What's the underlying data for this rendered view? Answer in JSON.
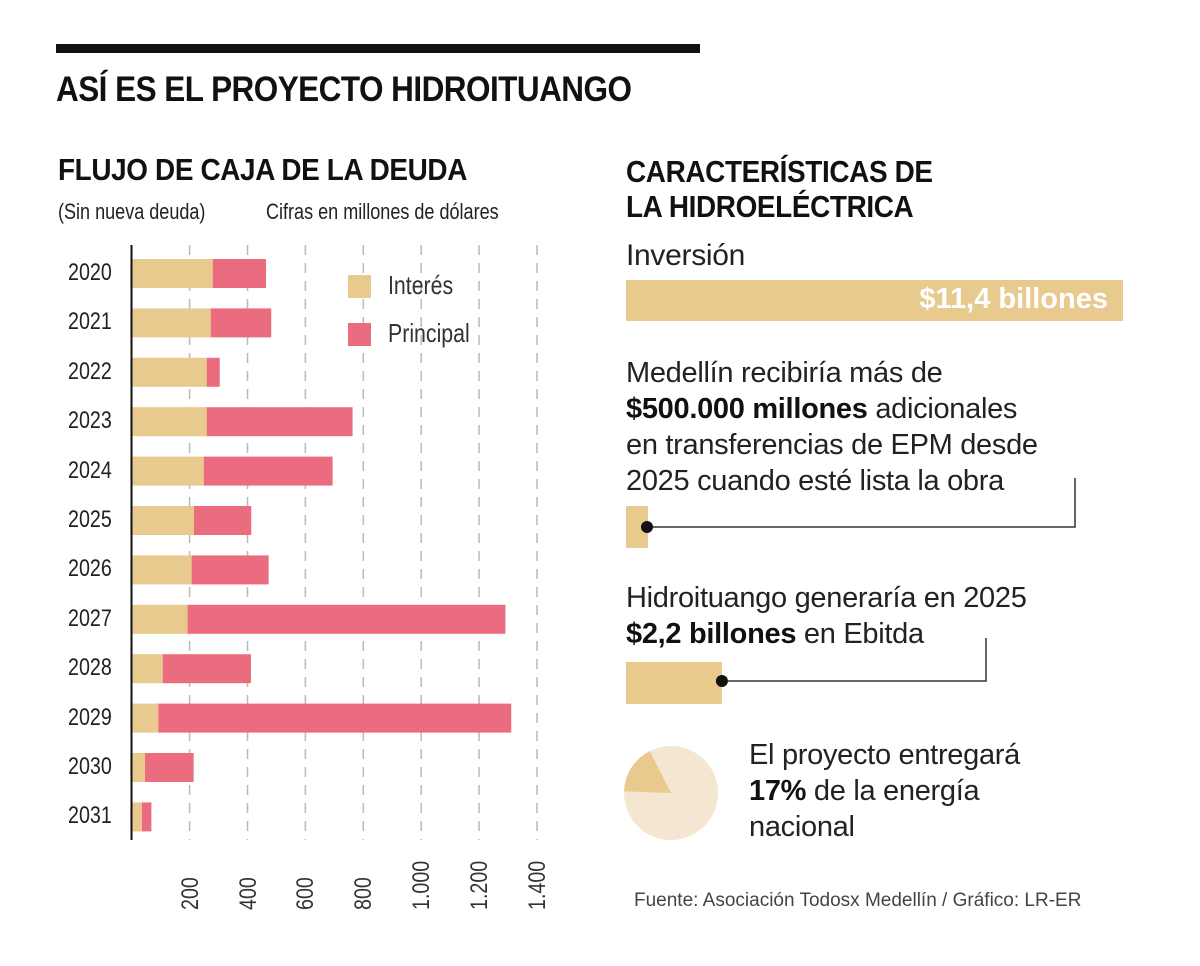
{
  "header": {
    "title": "ASÍ ES EL PROYECTO HIDROITUANGO"
  },
  "left_section": {
    "title": "FLUJO DE CAJA DE LA DEUDA",
    "subtitle_1": "(Sin nueva deuda)",
    "subtitle_2": "Cifras en millones de dólares"
  },
  "colors": {
    "interes": "#E9CA8E",
    "principal": "#EC6C7F",
    "pie_background": "#F5E6D2",
    "text": "#111111"
  },
  "chart_data": {
    "type": "bar",
    "orientation": "horizontal",
    "stacked": true,
    "title": "FLUJO DE CAJA DE LA DEUDA",
    "subtitle": "(Sin nueva deuda) Cifras en millones de dólares",
    "xlabel": "",
    "ylabel": "",
    "categories": [
      "2020",
      "2021",
      "2022",
      "2023",
      "2024",
      "2025",
      "2026",
      "2027",
      "2028",
      "2029",
      "2030",
      "2031"
    ],
    "series": [
      {
        "name": "Interés",
        "values": [
          280,
          273,
          259,
          259,
          249,
          215,
          207,
          193,
          107,
          92,
          46,
          35
        ]
      },
      {
        "name": "Principal",
        "values": [
          184,
          209,
          45,
          504,
          445,
          198,
          266,
          1098,
          305,
          1219,
          168,
          33
        ]
      }
    ],
    "xlim": [
      0,
      1400
    ],
    "xticks": [
      200,
      400,
      600,
      800,
      1000,
      1200,
      1400
    ],
    "xtick_labels": [
      "200",
      "400",
      "600",
      "800",
      "1.000",
      "1.200",
      "1.400"
    ],
    "grid": "vertical-dashed",
    "legend": {
      "position": "top-right",
      "entries": [
        "Interés",
        "Principal"
      ]
    }
  },
  "right_section": {
    "title_line1": "CARACTERÍSTICAS DE",
    "title_line2": "LA HIDROELÉCTRICA",
    "inversion": {
      "label": "Inversión",
      "value": "$11,4 billones",
      "amount_billones": 11.4
    },
    "medellin": {
      "line1": "Medellín recibiría más de",
      "line2_bold": "$500.000 millones",
      "line2_rest": " adicionales",
      "line3": "en transferencias de EPM desde",
      "line4": "2025 cuando esté lista la obra",
      "amount_billones": 0.5
    },
    "ebitda": {
      "line1": "Hidroituango generaría en 2025",
      "line2_bold": "$2,2 billones",
      "line2_rest": " en Ebitda",
      "amount_billones": 2.2
    },
    "energia": {
      "line1": "El proyecto entregará",
      "line2_bold": "17%",
      "line2_rest": " de la energía",
      "line3": "nacional",
      "percent": 17
    }
  },
  "footer": {
    "source": "Fuente: Asociación Todosx Medellín / Gráfico: LR-ER"
  }
}
